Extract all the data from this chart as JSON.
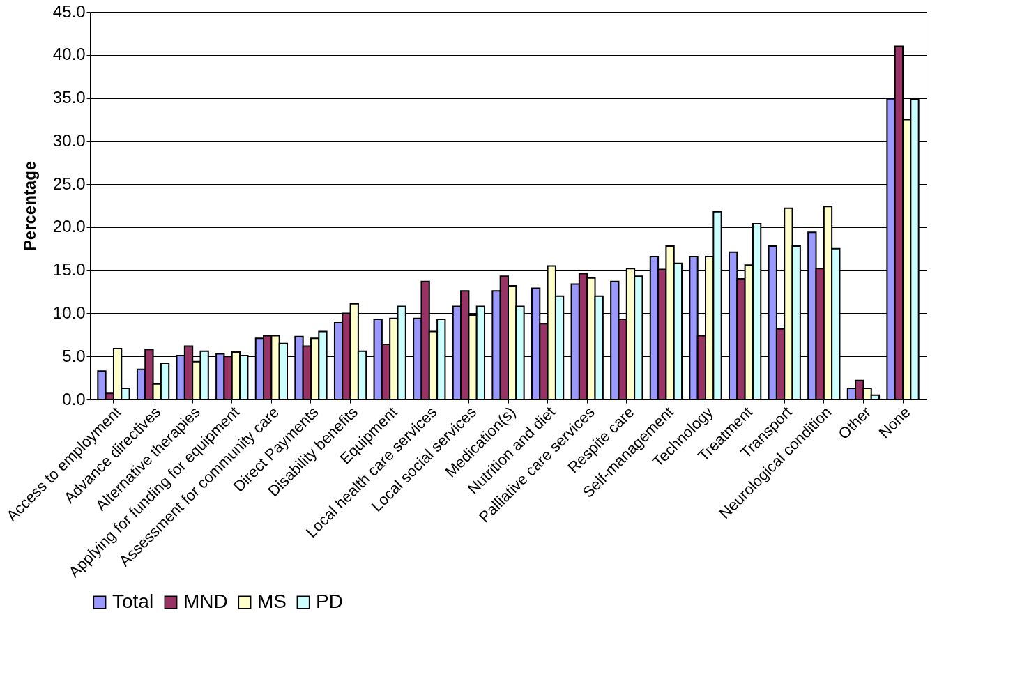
{
  "chart_data": {
    "type": "bar",
    "ylabel": "Percentage",
    "categories": [
      "Access to employment",
      "Advance directives",
      "Alternative therapies",
      "Applying for funding for equipment",
      "Assessment for community care",
      "Direct Payments",
      "Disability benefits",
      "Equipment",
      "Local health care services",
      "Local social services",
      "Medication(s)",
      "Nutrition and diet",
      "Palliative care services",
      "Respite care",
      "Self-management",
      "Technology",
      "Treatment",
      "Transport",
      "Neurological condition",
      "Other",
      "None"
    ],
    "series": [
      {
        "name": "Total",
        "color": "#9999ff",
        "values": [
          3.3,
          3.5,
          5.1,
          5.3,
          7.1,
          7.3,
          8.9,
          9.3,
          9.4,
          10.8,
          12.6,
          12.9,
          13.4,
          13.7,
          16.6,
          16.6,
          17.1,
          17.8,
          19.4,
          1.3,
          34.9
        ]
      },
      {
        "name": "MND",
        "color": "#993366",
        "values": [
          0.7,
          5.8,
          6.2,
          5.0,
          7.4,
          6.2,
          10.0,
          6.4,
          13.7,
          12.6,
          14.3,
          8.8,
          14.6,
          9.3,
          15.1,
          7.4,
          14.0,
          8.2,
          15.2,
          2.2,
          41.0
        ]
      },
      {
        "name": "MS",
        "color": "#ffffcc",
        "values": [
          5.9,
          1.8,
          4.4,
          5.5,
          7.4,
          7.1,
          11.1,
          9.4,
          7.9,
          9.8,
          13.2,
          15.5,
          14.1,
          15.2,
          17.8,
          16.6,
          15.6,
          22.2,
          22.4,
          1.3,
          32.5
        ]
      },
      {
        "name": "PD",
        "color": "#ccffff",
        "values": [
          1.3,
          4.2,
          5.6,
          5.1,
          6.5,
          7.9,
          5.6,
          10.8,
          9.3,
          10.8,
          10.8,
          12.0,
          12.0,
          14.3,
          15.8,
          21.8,
          20.4,
          17.8,
          17.5,
          0.5,
          34.8
        ]
      }
    ],
    "ylim": [
      0,
      45
    ],
    "yticks": [
      {
        "value": 0,
        "label": "0.0"
      },
      {
        "value": 5,
        "label": "5.0"
      },
      {
        "value": 10,
        "label": "10.0"
      },
      {
        "value": 15,
        "label": "15.0"
      },
      {
        "value": 20,
        "label": "20.0"
      },
      {
        "value": 25,
        "label": "25.0"
      },
      {
        "value": 30,
        "label": "30.0"
      },
      {
        "value": 35,
        "label": "35.0"
      },
      {
        "value": 40,
        "label": "40.0"
      },
      {
        "value": 45,
        "label": "45.0"
      }
    ],
    "grid": "y",
    "legend": "bottom"
  }
}
